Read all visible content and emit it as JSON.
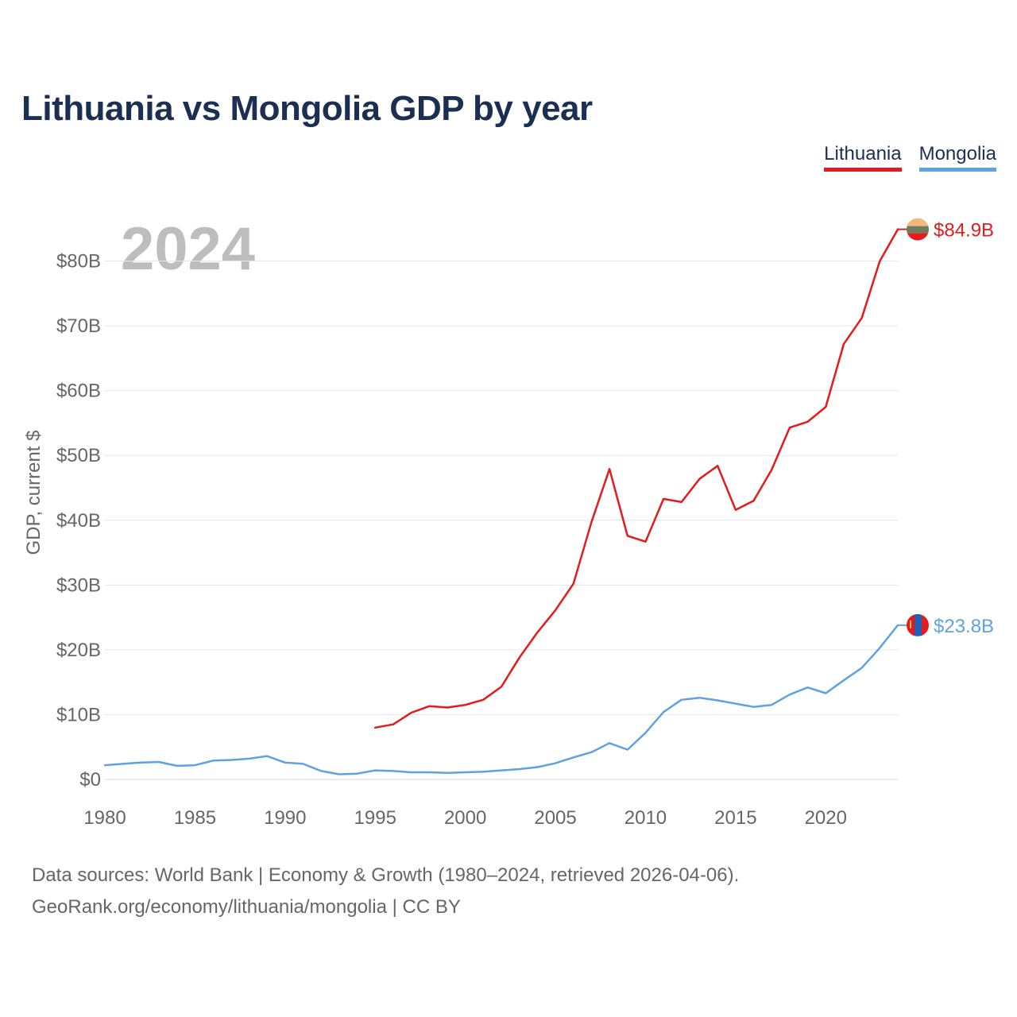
{
  "title": "Lithuania vs Mongolia GDP by year",
  "year_label": "2024",
  "legend": {
    "lithuania": "Lithuania",
    "mongolia": "Mongolia"
  },
  "footer": {
    "line1": "Data sources: World Bank | Economy & Growth (1980–2024, retrieved 2026-04-06).",
    "line2": "GeoRank.org/economy/lithuania/mongolia | CC BY"
  },
  "chart_data": {
    "type": "line",
    "title": "Lithuania vs Mongolia GDP by year",
    "xlabel": "",
    "ylabel": "GDP, current $",
    "xlim": [
      1980,
      2024
    ],
    "ylim": [
      0,
      85
    ],
    "y_unit": "billion US$",
    "x_ticks": [
      1980,
      1985,
      1990,
      1995,
      2000,
      2005,
      2010,
      2015,
      2020
    ],
    "y_ticks": [
      {
        "value": 0,
        "label": "$0"
      },
      {
        "value": 10,
        "label": "$10B"
      },
      {
        "value": 20,
        "label": "$20B"
      },
      {
        "value": 30,
        "label": "$30B"
      },
      {
        "value": 40,
        "label": "$40B"
      },
      {
        "value": 50,
        "label": "$50B"
      },
      {
        "value": 60,
        "label": "$60B"
      },
      {
        "value": 70,
        "label": "$70B"
      },
      {
        "value": 80,
        "label": "$80B"
      }
    ],
    "grid": true,
    "legend_position": "top-right",
    "series": [
      {
        "name": "Lithuania",
        "color": "#e41a1c",
        "end_label": "$84.9B",
        "x": [
          1995,
          1996,
          1997,
          1998,
          1999,
          2000,
          2001,
          2002,
          2003,
          2004,
          2005,
          2006,
          2007,
          2008,
          2009,
          2010,
          2011,
          2012,
          2013,
          2014,
          2015,
          2016,
          2017,
          2018,
          2019,
          2020,
          2021,
          2022,
          2023,
          2024
        ],
        "values": [
          8.0,
          8.5,
          10.3,
          11.3,
          11.1,
          11.5,
          12.3,
          14.3,
          18.8,
          22.7,
          26.1,
          30.2,
          39.7,
          47.9,
          37.6,
          36.7,
          43.3,
          42.8,
          46.4,
          48.4,
          41.6,
          43.0,
          47.8,
          54.3,
          55.2,
          57.5,
          67.2,
          71.2,
          80.0,
          84.9
        ]
      },
      {
        "name": "Mongolia",
        "color": "#5fa2e0",
        "end_label": "$23.8B",
        "x": [
          1980,
          1981,
          1982,
          1983,
          1984,
          1985,
          1986,
          1987,
          1988,
          1989,
          1990,
          1991,
          1992,
          1993,
          1994,
          1995,
          1996,
          1997,
          1998,
          1999,
          2000,
          2001,
          2002,
          2003,
          2004,
          2005,
          2006,
          2007,
          2008,
          2009,
          2010,
          2011,
          2012,
          2013,
          2014,
          2015,
          2016,
          2017,
          2018,
          2019,
          2020,
          2021,
          2022,
          2023,
          2024
        ],
        "values": [
          2.2,
          2.4,
          2.6,
          2.7,
          2.1,
          2.2,
          2.9,
          3.0,
          3.2,
          3.6,
          2.6,
          2.4,
          1.3,
          0.8,
          0.9,
          1.4,
          1.3,
          1.1,
          1.1,
          1.0,
          1.1,
          1.2,
          1.4,
          1.6,
          1.9,
          2.5,
          3.4,
          4.2,
          5.6,
          4.6,
          7.2,
          10.4,
          12.3,
          12.6,
          12.2,
          11.7,
          11.2,
          11.5,
          13.1,
          14.2,
          13.3,
          15.3,
          17.2,
          20.3,
          23.8
        ]
      }
    ]
  }
}
